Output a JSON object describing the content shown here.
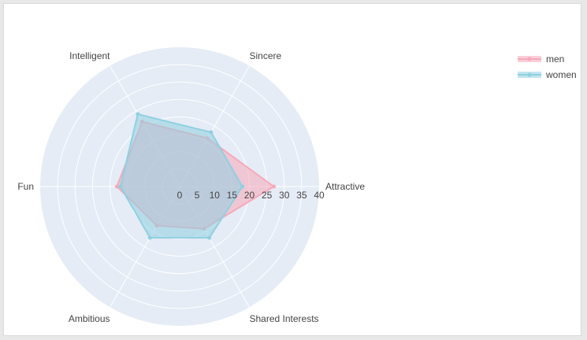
{
  "chart_data": {
    "type": "radar",
    "title": "",
    "categories": [
      "Attractive",
      "Sincere",
      "Intelligent",
      "Fun",
      "Ambitious",
      "Shared Interests"
    ],
    "radial_range": [
      0,
      40
    ],
    "radial_ticks": [
      0,
      5,
      10,
      15,
      20,
      25,
      30,
      35,
      40
    ],
    "grid": true,
    "legend_position": "top-right",
    "series": [
      {
        "name": "men",
        "values": [
          27,
          16,
          21.5,
          18,
          13,
          14
        ],
        "color": "#f7a8b8"
      },
      {
        "name": "women",
        "values": [
          18,
          18,
          24,
          17,
          17,
          17
        ],
        "color": "#8fd0e0"
      }
    ]
  },
  "colors": {
    "polar_bg": "#e5ecf6",
    "grid": "#ffffff",
    "text": "#444444"
  }
}
